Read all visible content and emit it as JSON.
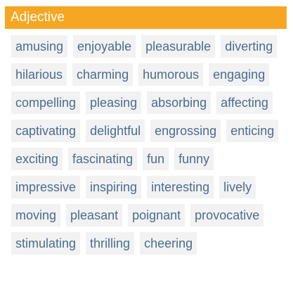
{
  "header": {
    "title": "Adjective"
  },
  "tags": [
    "amusing",
    "enjoyable",
    "pleasurable",
    "diverting",
    "hilarious",
    "charming",
    "humorous",
    "engaging",
    "compelling",
    "pleasing",
    "absorbing",
    "affecting",
    "captivating",
    "delightful",
    "engrossing",
    "enticing",
    "exciting",
    "fascinating",
    "fun",
    "funny",
    "impressive",
    "inspiring",
    "interesting",
    "lively",
    "moving",
    "pleasant",
    "poignant",
    "provocative",
    "stimulating",
    "thrilling",
    "cheering"
  ],
  "colors": {
    "header_bg": "#f6a623",
    "tag_bg": "#f2f2f2",
    "tag_text": "#4a6d90"
  }
}
